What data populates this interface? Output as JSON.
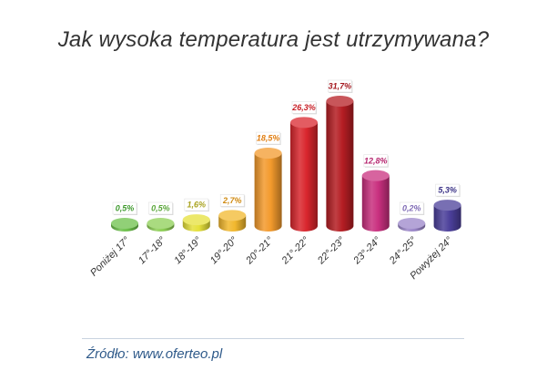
{
  "title": "Jak wysoka temperatura jest utrzymywana?",
  "source": "Źródło: www.oferteo.pl",
  "chart_data": {
    "type": "bar",
    "title": "Jak wysoka temperatura jest utrzymywana?",
    "xlabel": "",
    "ylabel": "",
    "categories": [
      "Poniżej 17°",
      "17°-18°",
      "18°-19°",
      "19°-20°",
      "20°-21°",
      "21°-22°",
      "22°-23°",
      "23°-24°",
      "24°-25°",
      "Powyżej 24°"
    ],
    "values": [
      0.5,
      0.5,
      1.6,
      2.7,
      18.5,
      26.3,
      31.7,
      12.8,
      0.2,
      5.3
    ],
    "value_labels": [
      "0,5%",
      "0,5%",
      "1,6%",
      "2,7%",
      "18,5%",
      "26,3%",
      "31,7%",
      "12,8%",
      "0,2%",
      "5,3%"
    ],
    "ylim": [
      0,
      31.7
    ],
    "grid": false,
    "colors": [
      "#6cc04a",
      "#8dcf55",
      "#e5e03a",
      "#f2b82e",
      "#f39a2c",
      "#d9262d",
      "#b51d23",
      "#c9307f",
      "#9b86c9",
      "#4b3f9a"
    ],
    "label_colors": [
      "#3f9a2e",
      "#5aa63a",
      "#a8a21e",
      "#d08a10",
      "#e07d10",
      "#c81f26",
      "#a3161d",
      "#b5246e",
      "#7f6bb5",
      "#3a3186"
    ]
  }
}
